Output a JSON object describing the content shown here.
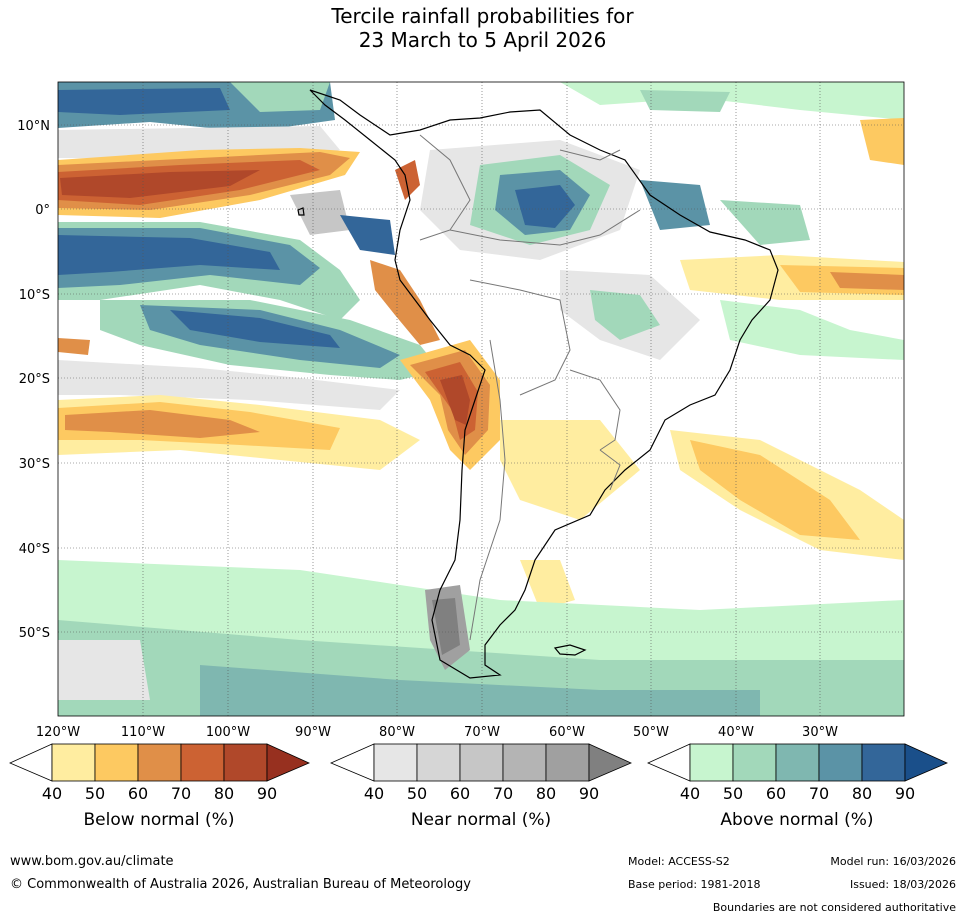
{
  "title": {
    "line1": "Tercile rainfall probabilities for",
    "line2": "23 March to 5 April 2026"
  },
  "map": {
    "lat_labels": [
      "10°N",
      "0°",
      "10°S",
      "20°S",
      "30°S",
      "40°S",
      "50°S"
    ],
    "lon_labels": [
      "120°W",
      "110°W",
      "100°W",
      "90°W",
      "80°W",
      "70°W",
      "60°W",
      "50°W",
      "40°W",
      "30°W"
    ]
  },
  "colorbars": [
    {
      "label": "Below normal (%)",
      "ticks": [
        "40",
        "50",
        "60",
        "70",
        "80",
        "90"
      ],
      "colors": [
        "#ffffff",
        "#ffeda0",
        "#fdc961",
        "#e08f48",
        "#cc6233",
        "#b0482a",
        "#97301f"
      ]
    },
    {
      "label": "Near normal (%)",
      "ticks": [
        "40",
        "50",
        "60",
        "70",
        "80",
        "90"
      ],
      "colors": [
        "#ffffff",
        "#e6e6e6",
        "#d6d6d6",
        "#c6c6c6",
        "#b4b4b4",
        "#a0a0a0",
        "#808080"
      ]
    },
    {
      "label": "Above normal (%)",
      "ticks": [
        "40",
        "50",
        "60",
        "70",
        "80",
        "90"
      ],
      "colors": [
        "#ffffff",
        "#c7f5cf",
        "#a2d8ba",
        "#7fb7b0",
        "#5b93a6",
        "#336699",
        "#1a4f8a"
      ]
    }
  ],
  "footer": {
    "website": "www.bom.gov.au/climate",
    "copyright": "© Commonwealth of Australia 2026, Australian Bureau of Meteorology",
    "model": "Model: ACCESS-S2",
    "model_run": "Model run: 16/03/2026",
    "base_period": "Base period: 1981-2018",
    "issued": "Issued: 18/03/2026",
    "disclaimer": "Boundaries are not considered authoritative"
  }
}
